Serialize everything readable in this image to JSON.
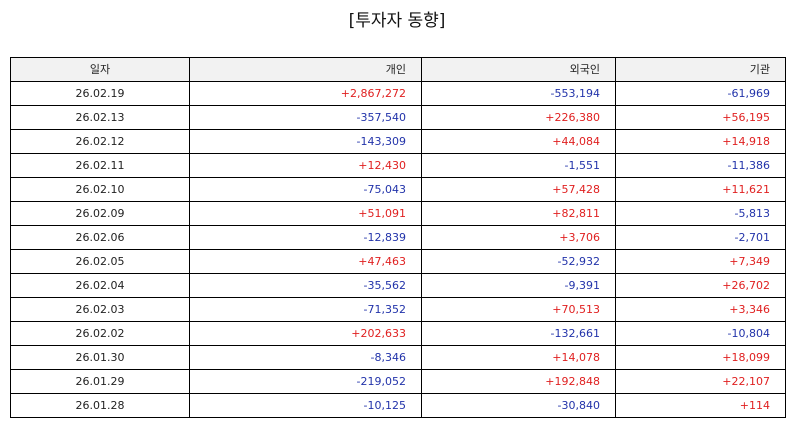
{
  "title": "[투자자 동향]",
  "table": {
    "headers": [
      "일자",
      "개인",
      "외국인",
      "기관"
    ],
    "rows": [
      [
        "26.02.19",
        "+2,867,272",
        "-553,194",
        "-61,969"
      ],
      [
        "26.02.13",
        "-357,540",
        "+226,380",
        "+56,195"
      ],
      [
        "26.02.12",
        "-143,309",
        "+44,084",
        "+14,918"
      ],
      [
        "26.02.11",
        "+12,430",
        "-1,551",
        "-11,386"
      ],
      [
        "26.02.10",
        "-75,043",
        "+57,428",
        "+11,621"
      ],
      [
        "26.02.09",
        "+51,091",
        "+82,811",
        "-5,813"
      ],
      [
        "26.02.06",
        "-12,839",
        "+3,706",
        "-2,701"
      ],
      [
        "26.02.05",
        "+47,463",
        "-52,932",
        "+7,349"
      ],
      [
        "26.02.04",
        "-35,562",
        "-9,391",
        "+26,702"
      ],
      [
        "26.02.03",
        "-71,352",
        "+70,513",
        "+3,346"
      ],
      [
        "26.02.02",
        "+202,633",
        "-132,661",
        "-10,804"
      ],
      [
        "26.01.30",
        "-8,346",
        "+14,078",
        "+18,099"
      ],
      [
        "26.01.29",
        "-219,052",
        "+192,848",
        "+22,107"
      ],
      [
        "26.01.28",
        "-10,125",
        "-30,840",
        "+114"
      ]
    ]
  },
  "colors": {
    "positive": "#e02020",
    "negative": "#2233aa",
    "header_bg": "#f2f2f2"
  }
}
